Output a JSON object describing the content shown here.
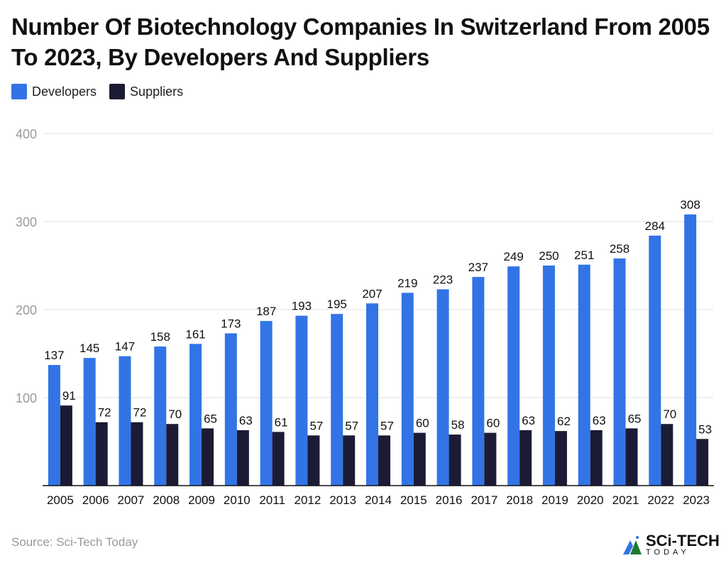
{
  "chart_data": {
    "type": "bar",
    "title": "Number Of Biotechnology Companies In Switzerland From 2005 To 2023, By Developers And Suppliers",
    "categories": [
      "2005",
      "2006",
      "2007",
      "2008",
      "2009",
      "2010",
      "2011",
      "2012",
      "2013",
      "2014",
      "2015",
      "2016",
      "2017",
      "2018",
      "2019",
      "2020",
      "2021",
      "2022",
      "2023"
    ],
    "series": [
      {
        "name": "Developers",
        "color": "#3274e6",
        "values": [
          137,
          145,
          147,
          158,
          161,
          173,
          187,
          193,
          195,
          207,
          219,
          223,
          237,
          249,
          250,
          251,
          258,
          284,
          308
        ]
      },
      {
        "name": "Suppliers",
        "color": "#1b1b36",
        "values": [
          91,
          72,
          72,
          70,
          65,
          63,
          61,
          57,
          57,
          57,
          60,
          58,
          60,
          63,
          62,
          63,
          65,
          70,
          53
        ]
      }
    ],
    "yticks": [
      "100",
      "200",
      "300",
      "400"
    ],
    "ylim": [
      0,
      400
    ],
    "grid": true,
    "legend": "top-left"
  },
  "source": "Source: Sci-Tech Today",
  "logo": {
    "line1": "SCi-TECH",
    "line2": "TODAY"
  }
}
